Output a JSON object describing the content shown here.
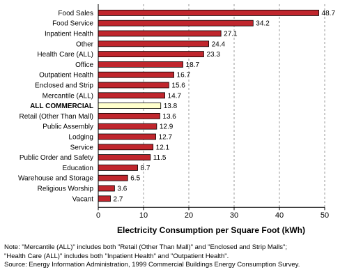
{
  "chart_data": {
    "type": "bar",
    "orientation": "horizontal",
    "categories": [
      "Food Sales",
      "Food Service",
      "Inpatient Health",
      "Other",
      "Health Care (ALL)",
      "Office",
      "Outpatient Health",
      "Enclosed and Strip",
      "Mercantile (ALL)",
      "ALL COMMERCIAL",
      "Retail (Other Than Mall)",
      "Public Assembly",
      "Lodging",
      "Service",
      "Public Order and Safety",
      "Education",
      "Warehouse and Storage",
      "Religious Worship",
      "Vacant"
    ],
    "values": [
      48.7,
      34.2,
      27.1,
      24.4,
      23.3,
      18.7,
      16.7,
      15.6,
      14.7,
      13.8,
      13.6,
      12.9,
      12.7,
      12.1,
      11.5,
      8.7,
      6.5,
      3.6,
      2.7
    ],
    "value_labels": [
      "48.7",
      "34.2",
      "27.1",
      "24.4",
      "23.3",
      "18.7",
      "16.7",
      "15.6",
      "14.7",
      "13.8",
      "13.6",
      "12.9",
      "12.7",
      "12.1",
      "11.5",
      "8.7",
      "6.5",
      "3.6",
      "2.7"
    ],
    "highlight_category": "ALL COMMERCIAL",
    "xlabel": "Electricity Consumption per Square Foot (kWh)",
    "xlim": [
      0,
      50
    ],
    "xticks": [
      0,
      10,
      20,
      30,
      40,
      50
    ],
    "grid": "vertical dashed",
    "colors": {
      "bar": "#c0262d",
      "highlight_bar": "#ffffcc",
      "bar_edge": "#000000",
      "grid": "#9a9a9a"
    }
  },
  "notes": [
    "Note: \"Mercantile (ALL)\" includes both \"Retail (Other Than Mall)\" and \"Enclosed and Strip Malls\";",
    "\"Health Care (ALL)\" includes both \"Inpatient Health\" and \"Outpatient Health\".",
    "Source: Energy Information Administration, 1999 Commercial Buildings Energy Consumption Survey."
  ]
}
